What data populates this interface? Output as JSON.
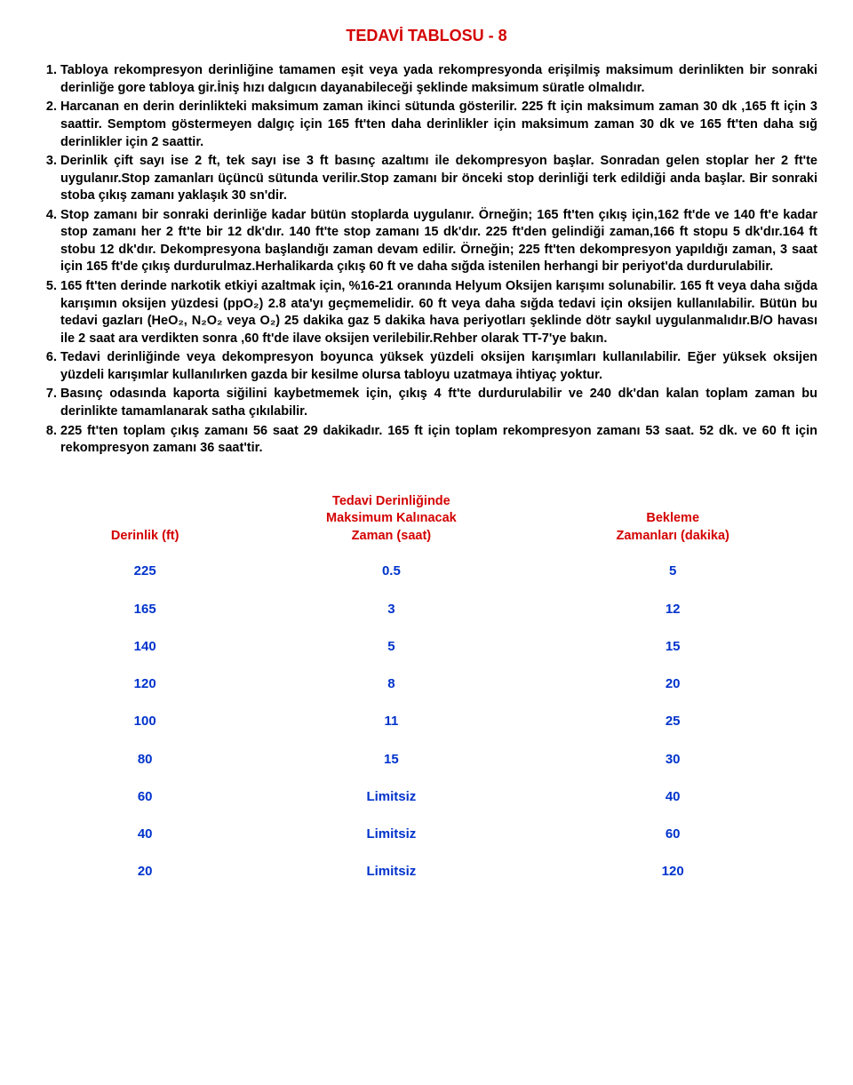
{
  "title": "TEDAVİ  TABLOSU - 8",
  "items": [
    "Tabloya rekompresyon derinliğine tamamen eşit veya yada rekompresyonda erişilmiş maksimum derinlikten bir sonraki derinliğe gore tabloya gir.İniş hızı dalgıcın dayanabileceği şeklinde maksimum süratle olmalıdır.",
    "Harcanan en derin derinlikteki maksimum zaman ikinci sütunda gösterilir. 225 ft için maksimum zaman 30 dk ,165 ft için 3 saattir. Semptom göstermeyen dalgıç için 165 ft'ten daha derinlikler için maksimum zaman 30 dk ve 165 ft'ten daha sığ derinlikler için 2 saattir.",
    "Derinlik çift sayı ise 2 ft, tek sayı ise 3 ft basınç azaltımı ile dekompresyon başlar. Sonradan gelen stoplar her 2 ft'te uygulanır.Stop zamanları üçüncü sütunda verilir.Stop zamanı bir önceki stop derinliği terk edildiği anda başlar. Bir sonraki stoba çıkış zamanı yaklaşık 30 sn'dir.",
    "Stop zamanı bir sonraki derinliğe kadar bütün stoplarda uygulanır. Örneğin; 165 ft'ten çıkış için,162 ft'de ve 140 ft'e kadar stop zamanı her 2 ft'te bir 12 dk'dır. 140 ft'te stop zamanı 15 dk'dır. 225 ft'den gelindiği zaman,166 ft stopu 5 dk'dır.164 ft stobu 12 dk'dır. Dekompresyona başlandığı zaman devam edilir. Örneğin; 225 ft'ten dekompresyon yapıldığı zaman, 3 saat için 165 ft'de çıkış durdurulmaz.Herhalikarda  çıkış 60 ft ve daha sığda istenilen herhangi bir periyot'da durdurulabilir.",
    "165 ft'ten derinde narkotik etkiyi azaltmak için, %16-21 oranında Helyum Oksijen karışımı solunabilir. 165 ft veya daha sığda karışımın oksijen yüzdesi (ppO₂) 2.8 ata'yı geçmemelidir. 60 ft veya daha sığda tedavi için oksijen kullanılabilir. Bütün bu tedavi gazları (HeO₂, N₂O₂ veya O₂) 25 dakika gaz 5 dakika hava periyotları şeklinde dötr saykıl uygulanmalıdır.B/O havası ile 2 saat ara verdikten sonra ,60 ft'de ilave oksijen verilebilir.Rehber olarak TT-7'ye bakın.",
    "Tedavi derinliğinde veya dekompresyon boyunca yüksek yüzdeli oksijen karışımları kullanılabilir. Eğer yüksek oksijen yüzdeli karışımlar kullanılırken gazda bir kesilme olursa tabloyu uzatmaya ihtiyaç yoktur.",
    "Basınç odasında kaporta siğilini kaybetmemek için, çıkış 4 ft'te durdurulabilir ve 240 dk'dan kalan toplam zaman bu derinlikte tamamlanarak satha çıkılabilir.",
    "225 ft'ten toplam çıkış zamanı 56 saat 29 dakikadır. 165 ft için toplam rekompresyon zamanı 53 saat. 52 dk. ve 60 ft için rekompresyon zamanı 36 saat'tir."
  ],
  "table": {
    "headers": {
      "depth": "Derinlik (ft)",
      "maxtime_l1": "Tedavi Derinliğinde",
      "maxtime_l2": "Maksimum Kalınacak",
      "maxtime_l3": "Zaman (saat)",
      "wait_l1": "Bekleme",
      "wait_l2": "Zamanları (dakika)"
    },
    "rows": [
      {
        "depth": "225",
        "maxtime": "0.5",
        "wait": "5"
      },
      {
        "depth": "165",
        "maxtime": "3",
        "wait": "12"
      },
      {
        "depth": "140",
        "maxtime": "5",
        "wait": "15"
      },
      {
        "depth": "120",
        "maxtime": "8",
        "wait": "20"
      },
      {
        "depth": "100",
        "maxtime": "11",
        "wait": "25"
      },
      {
        "depth": "80",
        "maxtime": "15",
        "wait": "30"
      },
      {
        "depth": "60",
        "maxtime": "Limitsiz",
        "wait": "40"
      },
      {
        "depth": "40",
        "maxtime": "Limitsiz",
        "wait": "60"
      },
      {
        "depth": "20",
        "maxtime": "Limitsiz",
        "wait": "120"
      }
    ]
  }
}
